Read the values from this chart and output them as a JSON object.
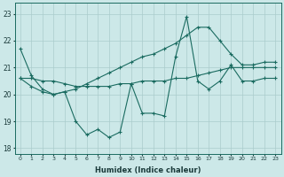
{
  "xlabel": "Humidex (Indice chaleur)",
  "bg_color": "#cce8e8",
  "grid_color": "#aacccc",
  "line_color": "#1a6b60",
  "x_data": [
    0,
    1,
    2,
    3,
    4,
    5,
    6,
    7,
    8,
    9,
    10,
    11,
    12,
    13,
    14,
    15,
    16,
    17,
    18,
    19,
    20,
    21,
    22,
    23
  ],
  "series1": [
    21.7,
    20.7,
    20.2,
    20.0,
    20.1,
    19.0,
    18.5,
    18.7,
    18.4,
    18.6,
    20.4,
    19.3,
    19.3,
    19.2,
    21.4,
    22.9,
    20.5,
    20.2,
    20.5,
    21.1,
    20.5,
    20.5,
    20.6,
    20.6
  ],
  "series2": [
    20.6,
    20.6,
    20.5,
    20.5,
    20.4,
    20.3,
    20.3,
    20.3,
    20.3,
    20.4,
    20.4,
    20.5,
    20.5,
    20.5,
    20.6,
    20.6,
    20.7,
    20.8,
    20.9,
    21.0,
    21.0,
    21.0,
    21.0,
    21.0
  ],
  "series3": [
    20.6,
    20.3,
    20.1,
    20.0,
    20.1,
    20.2,
    20.4,
    20.6,
    20.8,
    21.0,
    21.2,
    21.4,
    21.5,
    21.7,
    21.9,
    22.2,
    22.5,
    22.5,
    22.0,
    21.5,
    21.1,
    21.1,
    21.2,
    21.2
  ],
  "ylim": [
    17.8,
    23.4
  ],
  "yticks": [
    18,
    19,
    20,
    21,
    22,
    23
  ],
  "xlim": [
    -0.5,
    23.5
  ]
}
